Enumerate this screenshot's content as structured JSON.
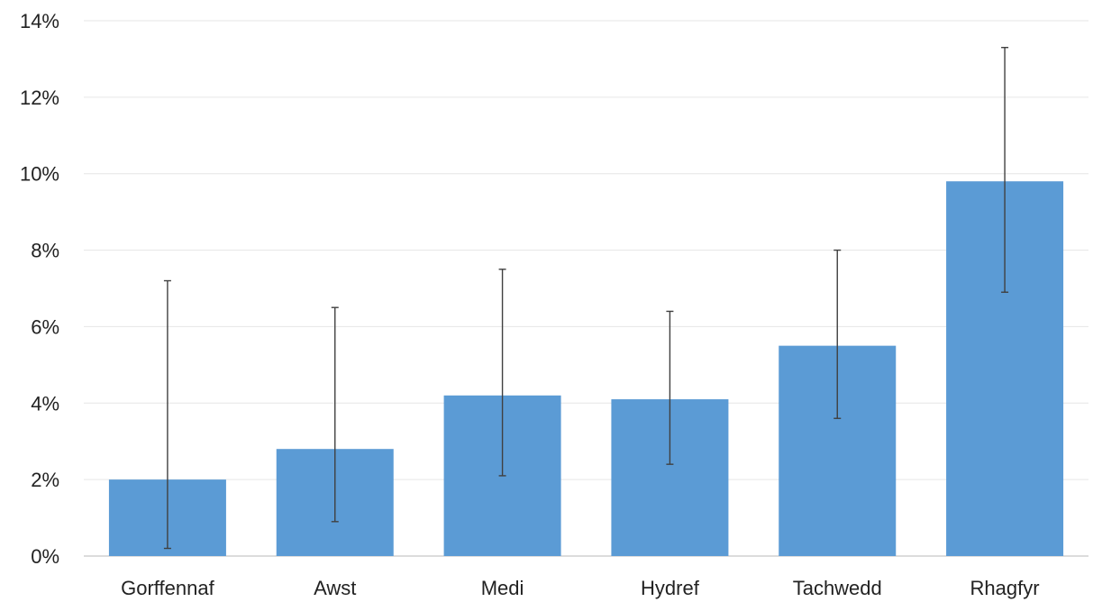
{
  "chart_data": {
    "type": "bar",
    "title": "",
    "xlabel": "",
    "ylabel": "",
    "categories": [
      "Gorffennaf",
      "Awst",
      "Medi",
      "Hydref",
      "Tachwedd",
      "Rhagfyr"
    ],
    "values": [
      2.0,
      2.8,
      4.2,
      4.1,
      5.5,
      9.8
    ],
    "error_low": [
      0.2,
      0.9,
      2.1,
      2.4,
      3.6,
      6.9
    ],
    "error_high": [
      7.2,
      6.5,
      7.5,
      6.4,
      8.0,
      13.3
    ],
    "ylim": [
      0,
      14
    ],
    "yticks": [
      0,
      2,
      4,
      6,
      8,
      10,
      12,
      14
    ],
    "ytick_labels": [
      "0%",
      "2%",
      "4%",
      "6%",
      "8%",
      "10%",
      "12%",
      "14%"
    ],
    "grid": true,
    "legend": "none",
    "colors": {
      "bar": "#5b9bd5",
      "error": "#404040",
      "grid": "#e6e6e6"
    }
  }
}
